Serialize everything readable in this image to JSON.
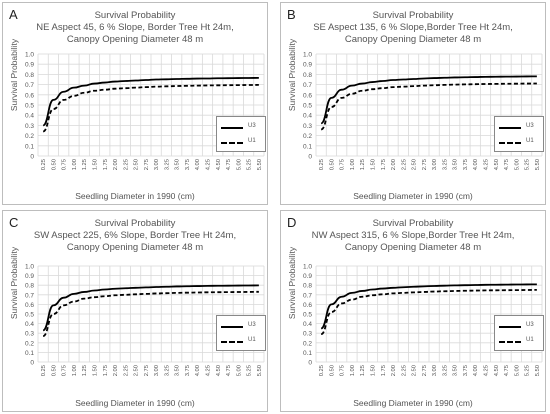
{
  "chart_data": [
    {
      "type": "line",
      "panel_letter": "A",
      "title": "Survival Probability",
      "subtitle_lines": [
        "NE Aspect 45, 6 % Slope, Border Tree Ht 24m,",
        "Canopy Opening Diameter 48 m"
      ],
      "xlabel": "Seedling Diameter in 1990 (cm)",
      "ylabel": "Survival Probability",
      "ylim": [
        0,
        1
      ],
      "yticks": [
        "0",
        "0.1",
        "0.2",
        "0.3",
        "0.4",
        "0.5",
        "0.6",
        "0.7",
        "0.8",
        "0.9",
        "1.0"
      ],
      "xticks": [
        "0.25",
        "0.50",
        "0.75",
        "1.00",
        "1.25",
        "1.50",
        "1.75",
        "2.00",
        "2.25",
        "2.50",
        "2.75",
        "3.00",
        "3.25",
        "3.50",
        "3.75",
        "4.00",
        "4.25",
        "4.50",
        "4.75",
        "5.00",
        "5.25",
        "5.50"
      ],
      "grid": true,
      "legend_position": "right",
      "series": [
        {
          "name": "U3",
          "style": "solid",
          "values": [
            0.3,
            0.55,
            0.63,
            0.67,
            0.69,
            0.71,
            0.72,
            0.73,
            0.735,
            0.74,
            0.745,
            0.75,
            0.752,
            0.755,
            0.757,
            0.759,
            0.76,
            0.762,
            0.763,
            0.764,
            0.765,
            0.766
          ]
        },
        {
          "name": "U1",
          "style": "dashed",
          "values": [
            0.24,
            0.46,
            0.55,
            0.59,
            0.62,
            0.64,
            0.65,
            0.66,
            0.665,
            0.67,
            0.675,
            0.68,
            0.683,
            0.686,
            0.688,
            0.69,
            0.692,
            0.693,
            0.694,
            0.695,
            0.696,
            0.697
          ]
        }
      ]
    },
    {
      "type": "line",
      "panel_letter": "B",
      "title": "Survival Probability",
      "subtitle_lines": [
        "SE Aspect 135, 6 % Slope,Border Tree Ht 24m,",
        "Canopy Opening Diameter 48 m"
      ],
      "xlabel": "Seedling Diameter in 1990 (cm)",
      "ylabel": "Survival Probability",
      "ylim": [
        0,
        1
      ],
      "yticks": [
        "0",
        "0.1",
        "0.2",
        "0.3",
        "0.4",
        "0.5",
        "0.6",
        "0.7",
        "0.8",
        "0.9",
        "1.0"
      ],
      "xticks": [
        "0.25",
        "0.50",
        "0.75",
        "1.00",
        "1.25",
        "1.50",
        "1.75",
        "2.00",
        "2.25",
        "2.50",
        "2.75",
        "3.00",
        "3.25",
        "3.50",
        "3.75",
        "4.00",
        "4.25",
        "4.50",
        "4.75",
        "5.00",
        "5.25",
        "5.50"
      ],
      "grid": true,
      "legend_position": "right",
      "series": [
        {
          "name": "U3",
          "style": "solid",
          "values": [
            0.32,
            0.57,
            0.65,
            0.69,
            0.71,
            0.725,
            0.735,
            0.745,
            0.75,
            0.755,
            0.76,
            0.764,
            0.767,
            0.77,
            0.772,
            0.774,
            0.776,
            0.777,
            0.778,
            0.779,
            0.78,
            0.781
          ]
        },
        {
          "name": "U1",
          "style": "dashed",
          "values": [
            0.26,
            0.48,
            0.57,
            0.61,
            0.64,
            0.655,
            0.665,
            0.675,
            0.68,
            0.685,
            0.69,
            0.694,
            0.697,
            0.7,
            0.702,
            0.704,
            0.706,
            0.707,
            0.708,
            0.709,
            0.71,
            0.711
          ]
        }
      ]
    },
    {
      "type": "line",
      "panel_letter": "C",
      "title": "Survival Probability",
      "subtitle_lines": [
        "SW Aspect 225, 6% Slope, Border Tree Ht 24m,",
        "Canopy Opening Diameter 48 m"
      ],
      "xlabel": "Seedling Diameter in 1990 (cm)",
      "ylabel": "Survival Probability",
      "ylim": [
        0,
        1
      ],
      "yticks": [
        "0",
        "0.1",
        "0.2",
        "0.3",
        "0.4",
        "0.5",
        "0.6",
        "0.7",
        "0.8",
        "0.9",
        "1.0"
      ],
      "xticks": [
        "0.25",
        "0.50",
        "0.75",
        "1.00",
        "1.25",
        "1.50",
        "1.75",
        "2.00",
        "2.25",
        "2.50",
        "2.75",
        "3.00",
        "3.25",
        "3.50",
        "3.75",
        "4.00",
        "4.25",
        "4.50",
        "4.75",
        "5.00",
        "5.25",
        "5.50"
      ],
      "grid": true,
      "legend_position": "right",
      "series": [
        {
          "name": "U3",
          "style": "solid",
          "values": [
            0.33,
            0.59,
            0.67,
            0.71,
            0.73,
            0.745,
            0.755,
            0.763,
            0.768,
            0.773,
            0.777,
            0.781,
            0.784,
            0.787,
            0.789,
            0.791,
            0.793,
            0.794,
            0.795,
            0.796,
            0.797,
            0.798
          ]
        },
        {
          "name": "U1",
          "style": "dashed",
          "values": [
            0.27,
            0.5,
            0.59,
            0.63,
            0.66,
            0.675,
            0.685,
            0.695,
            0.7,
            0.705,
            0.71,
            0.714,
            0.717,
            0.72,
            0.722,
            0.724,
            0.726,
            0.727,
            0.728,
            0.729,
            0.73,
            0.731
          ]
        }
      ]
    },
    {
      "type": "line",
      "panel_letter": "D",
      "title": "Survival Probability",
      "subtitle_lines": [
        "NW Aspect 315, 6 % Slope,Border Tree Ht 24m,",
        "Canopy Opening Diameter 48 m"
      ],
      "xlabel": "Seedling Diameter in 1990 (cm)",
      "ylabel": "Survival Probability",
      "ylim": [
        0,
        1
      ],
      "yticks": [
        "0",
        "0.1",
        "0.2",
        "0.3",
        "0.4",
        "0.5",
        "0.6",
        "0.7",
        "0.8",
        "0.9",
        "1.0"
      ],
      "xticks": [
        "0.25",
        "0.50",
        "0.75",
        "1.00",
        "1.25",
        "1.50",
        "1.75",
        "2.00",
        "2.25",
        "2.50",
        "2.75",
        "3.00",
        "3.25",
        "3.50",
        "3.75",
        "4.00",
        "4.25",
        "4.50",
        "4.75",
        "5.00",
        "5.25",
        "5.50"
      ],
      "grid": true,
      "legend_position": "right",
      "series": [
        {
          "name": "U3",
          "style": "solid",
          "values": [
            0.35,
            0.6,
            0.68,
            0.72,
            0.74,
            0.755,
            0.765,
            0.773,
            0.779,
            0.784,
            0.788,
            0.792,
            0.795,
            0.798,
            0.8,
            0.802,
            0.804,
            0.805,
            0.806,
            0.807,
            0.808,
            0.809
          ]
        },
        {
          "name": "U1",
          "style": "dashed",
          "values": [
            0.29,
            0.52,
            0.61,
            0.65,
            0.68,
            0.695,
            0.705,
            0.715,
            0.72,
            0.725,
            0.73,
            0.734,
            0.737,
            0.74,
            0.742,
            0.744,
            0.746,
            0.747,
            0.748,
            0.749,
            0.75,
            0.751
          ]
        }
      ]
    }
  ]
}
